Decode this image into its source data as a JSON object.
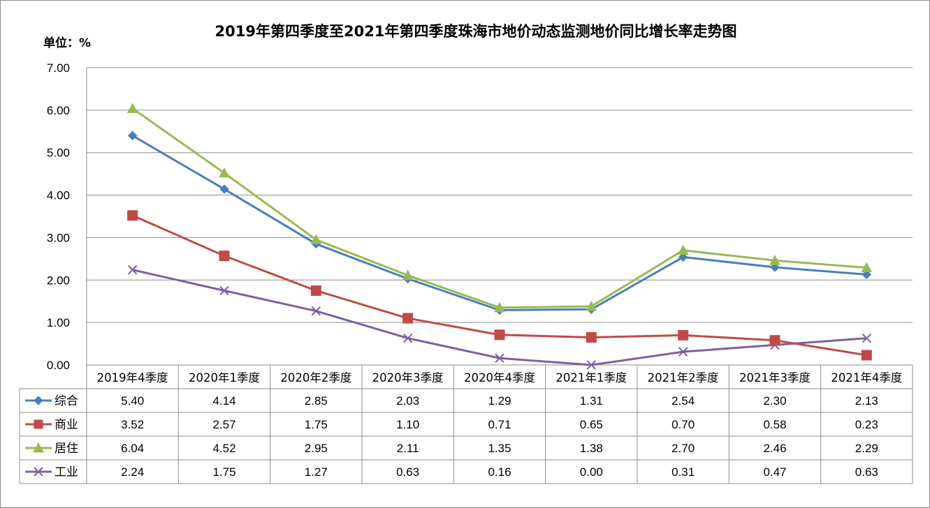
{
  "chart_data": {
    "type": "line",
    "title": "2019年第四季度至2021年第四季度珠海市地价动态监测地价同比增长率走势图",
    "unit_label": "单位：%",
    "categories": [
      "2019年4季度",
      "2020年1季度",
      "2020年2季度",
      "2020年3季度",
      "2020年4季度",
      "2021年1季度",
      "2021年2季度",
      "2021年3季度",
      "2021年4季度"
    ],
    "ylim": [
      0,
      7
    ],
    "yticks": [
      "0.00",
      "1.00",
      "2.00",
      "3.00",
      "4.00",
      "5.00",
      "6.00",
      "7.00"
    ],
    "grid": true,
    "legend": "data-table-left",
    "series": [
      {
        "name": "综合",
        "color": "#4a7ebb",
        "marker": "diamond",
        "values": [
          5.4,
          4.14,
          2.85,
          2.03,
          1.29,
          1.31,
          2.54,
          2.3,
          2.13
        ],
        "labels": [
          "5.40",
          "4.14",
          "2.85",
          "2.03",
          "1.29",
          "1.31",
          "2.54",
          "2.30",
          "2.13"
        ]
      },
      {
        "name": "商业",
        "color": "#be4b48",
        "marker": "square",
        "values": [
          3.52,
          2.57,
          1.75,
          1.1,
          0.71,
          0.65,
          0.7,
          0.58,
          0.23
        ],
        "labels": [
          "3.52",
          "2.57",
          "1.75",
          "1.10",
          "0.71",
          "0.65",
          "0.70",
          "0.58",
          "0.23"
        ]
      },
      {
        "name": "居住",
        "color": "#98b954",
        "marker": "triangle",
        "values": [
          6.04,
          4.52,
          2.95,
          2.11,
          1.35,
          1.38,
          2.7,
          2.46,
          2.29
        ],
        "labels": [
          "6.04",
          "4.52",
          "2.95",
          "2.11",
          "1.35",
          "1.38",
          "2.70",
          "2.46",
          "2.29"
        ]
      },
      {
        "name": "工业",
        "color": "#7d60a0",
        "marker": "x",
        "values": [
          2.24,
          1.75,
          1.27,
          0.63,
          0.16,
          0.0,
          0.31,
          0.47,
          0.63
        ],
        "labels": [
          "2.24",
          "1.75",
          "1.27",
          "0.63",
          "0.16",
          "0.00",
          "0.31",
          "0.47",
          "0.63"
        ]
      }
    ]
  }
}
